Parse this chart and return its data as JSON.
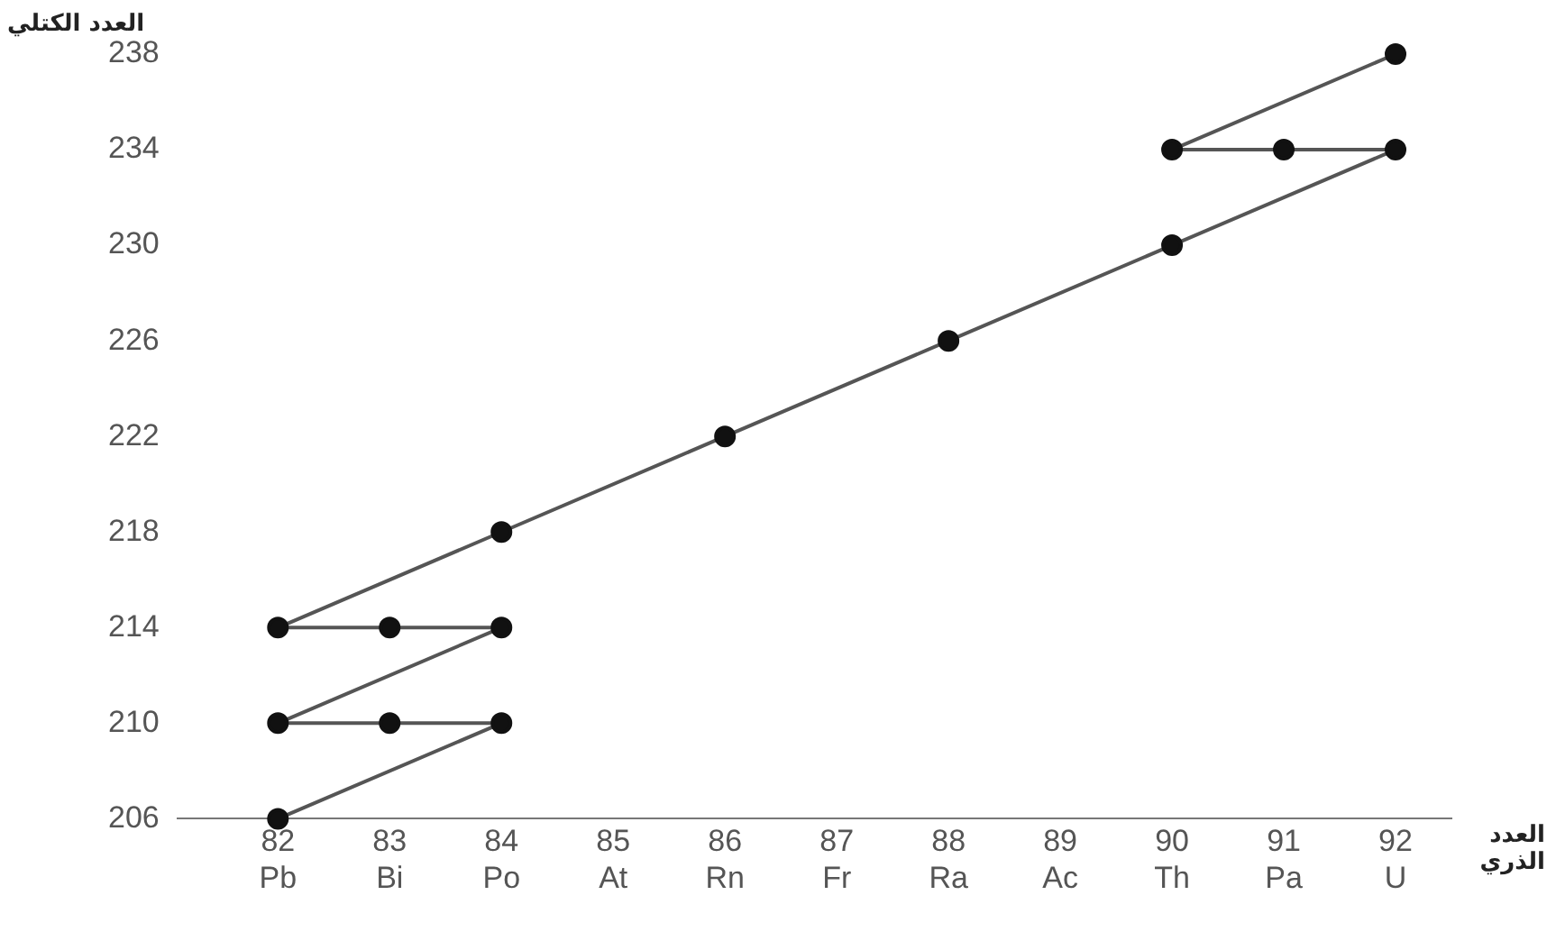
{
  "chart_data": {
    "type": "line",
    "xlabel": "العدد الذري",
    "ylabel": "العدد الكتلي",
    "xlim": [
      81.1,
      92.5
    ],
    "ylim": [
      206,
      238
    ],
    "xticks": [
      {
        "value": 82,
        "label": "82\nPb"
      },
      {
        "value": 83,
        "label": "83\nBi"
      },
      {
        "value": 84,
        "label": "84\nPo"
      },
      {
        "value": 85,
        "label": "85\nAt"
      },
      {
        "value": 86,
        "label": "86\nRn"
      },
      {
        "value": 87,
        "label": "87\nFr"
      },
      {
        "value": 88,
        "label": "88\nRa"
      },
      {
        "value": 89,
        "label": "89\nAc"
      },
      {
        "value": 90,
        "label": "90\nTh"
      },
      {
        "value": 91,
        "label": "91\nPa"
      },
      {
        "value": 92,
        "label": "92\nU"
      }
    ],
    "yticks": [
      206,
      210,
      214,
      218,
      222,
      226,
      230,
      234,
      238
    ],
    "series": [
      {
        "color": "#555555",
        "x": [
          92,
          90,
          91,
          92,
          90,
          88,
          86,
          84,
          82,
          83,
          84,
          82,
          83,
          84,
          82
        ],
        "values": [
          238,
          234,
          234,
          234,
          230,
          226,
          222,
          218,
          214,
          214,
          214,
          210,
          210,
          210,
          206
        ]
      }
    ],
    "marker": "circle",
    "line_style": "solid",
    "grid": false,
    "legend": false
  }
}
